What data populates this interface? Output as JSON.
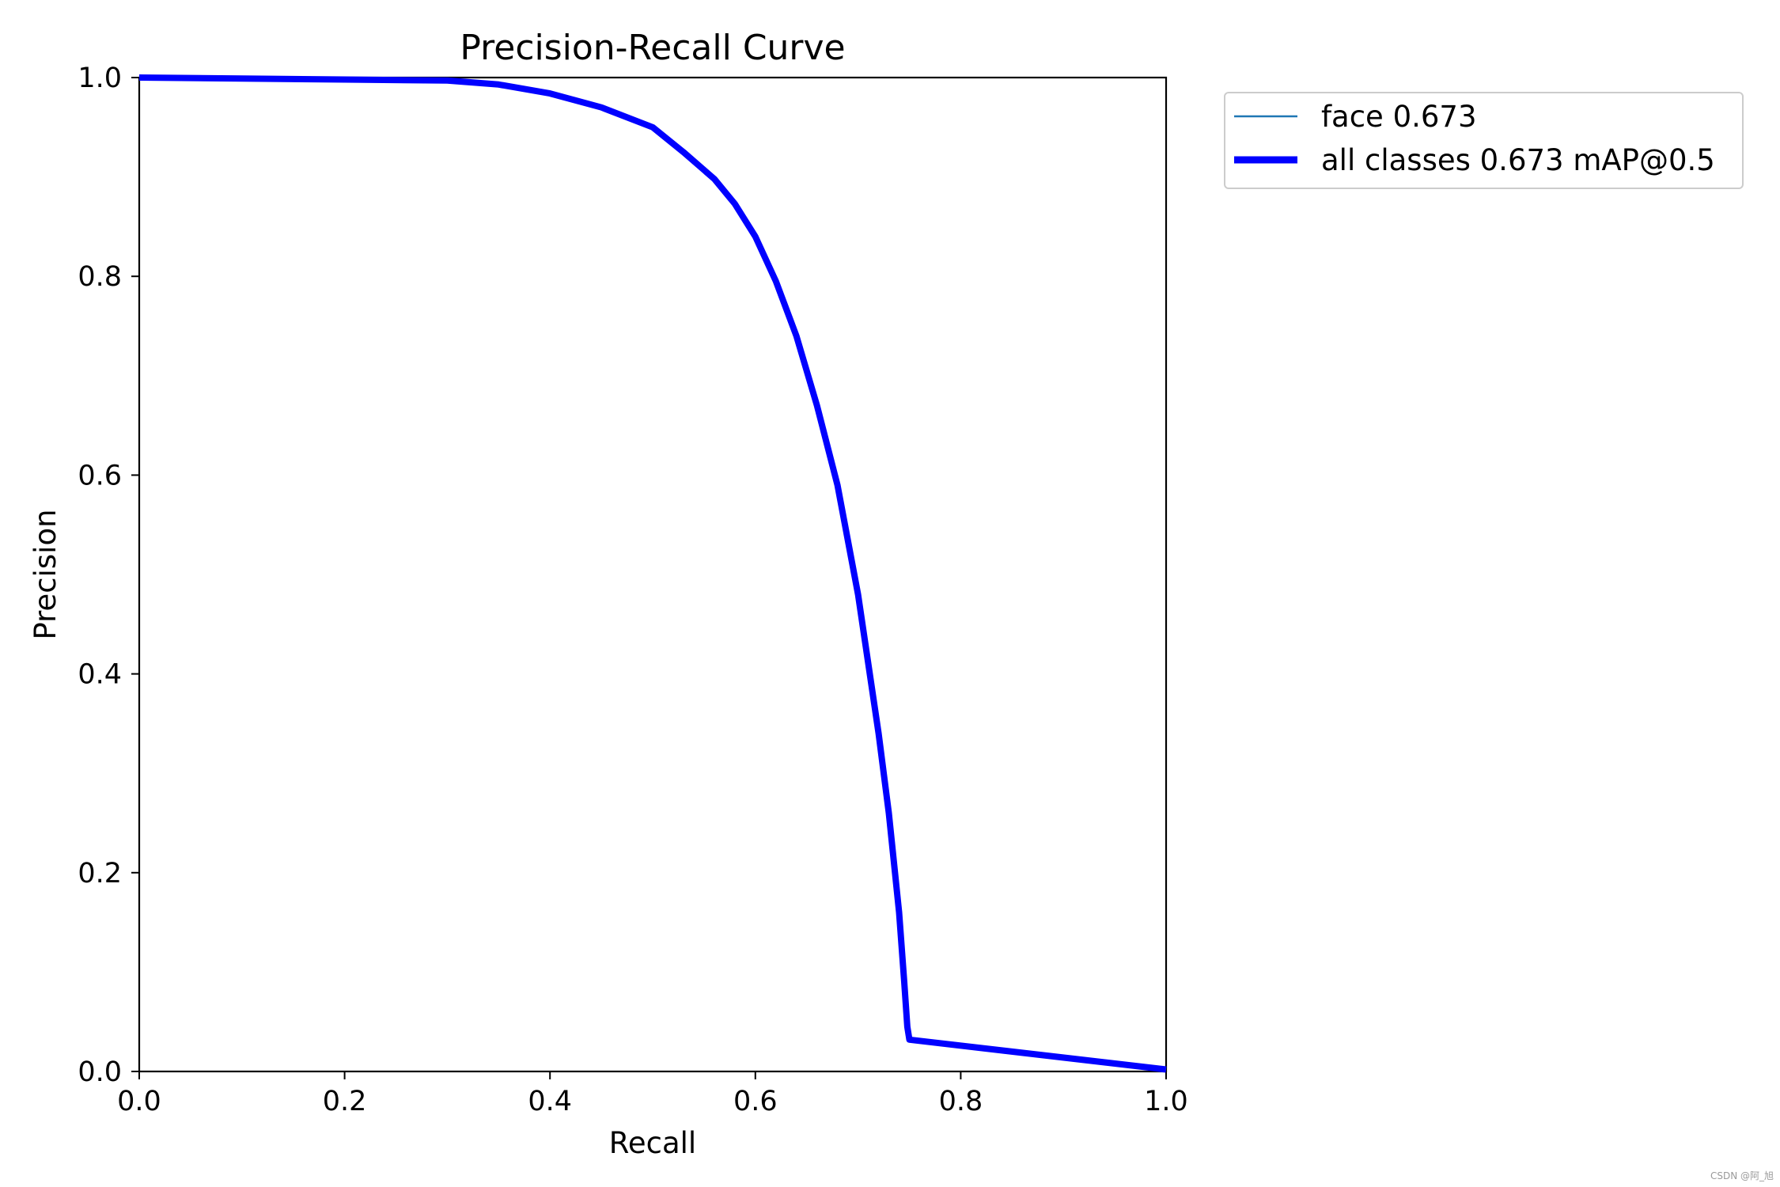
{
  "chart_data": {
    "type": "line",
    "title": "Precision-Recall Curve",
    "xlabel": "Recall",
    "ylabel": "Precision",
    "xlim": [
      0,
      1
    ],
    "ylim": [
      0,
      1
    ],
    "xticks": [
      "0.0",
      "0.2",
      "0.4",
      "0.6",
      "0.8",
      "1.0"
    ],
    "yticks": [
      "0.0",
      "0.2",
      "0.4",
      "0.6",
      "0.8",
      "1.0"
    ],
    "grid": false,
    "legend_position": "outside-top-right",
    "series": [
      {
        "name": "face 0.673",
        "color": "#1f77b4",
        "x": [
          0.0,
          0.1,
          0.2,
          0.3,
          0.35,
          0.4,
          0.45,
          0.5,
          0.53,
          0.56,
          0.58,
          0.6,
          0.62,
          0.64,
          0.66,
          0.68,
          0.7,
          0.72,
          0.73,
          0.74,
          0.745,
          0.748,
          0.75,
          1.0
        ],
        "y": [
          1.0,
          0.999,
          0.998,
          0.997,
          0.993,
          0.984,
          0.97,
          0.95,
          0.925,
          0.898,
          0.873,
          0.84,
          0.795,
          0.74,
          0.67,
          0.59,
          0.48,
          0.34,
          0.26,
          0.16,
          0.09,
          0.045,
          0.032,
          0.002
        ]
      },
      {
        "name": "all classes 0.673 mAP@0.5",
        "color": "#0000ff",
        "x": [
          0.0,
          0.1,
          0.2,
          0.3,
          0.35,
          0.4,
          0.45,
          0.5,
          0.53,
          0.56,
          0.58,
          0.6,
          0.62,
          0.64,
          0.66,
          0.68,
          0.7,
          0.72,
          0.73,
          0.74,
          0.745,
          0.748,
          0.75,
          1.0
        ],
        "y": [
          1.0,
          0.999,
          0.998,
          0.997,
          0.993,
          0.984,
          0.97,
          0.95,
          0.925,
          0.898,
          0.873,
          0.84,
          0.795,
          0.74,
          0.67,
          0.59,
          0.48,
          0.34,
          0.26,
          0.16,
          0.09,
          0.045,
          0.032,
          0.002
        ]
      }
    ]
  },
  "watermark": "CSDN @阿_旭"
}
